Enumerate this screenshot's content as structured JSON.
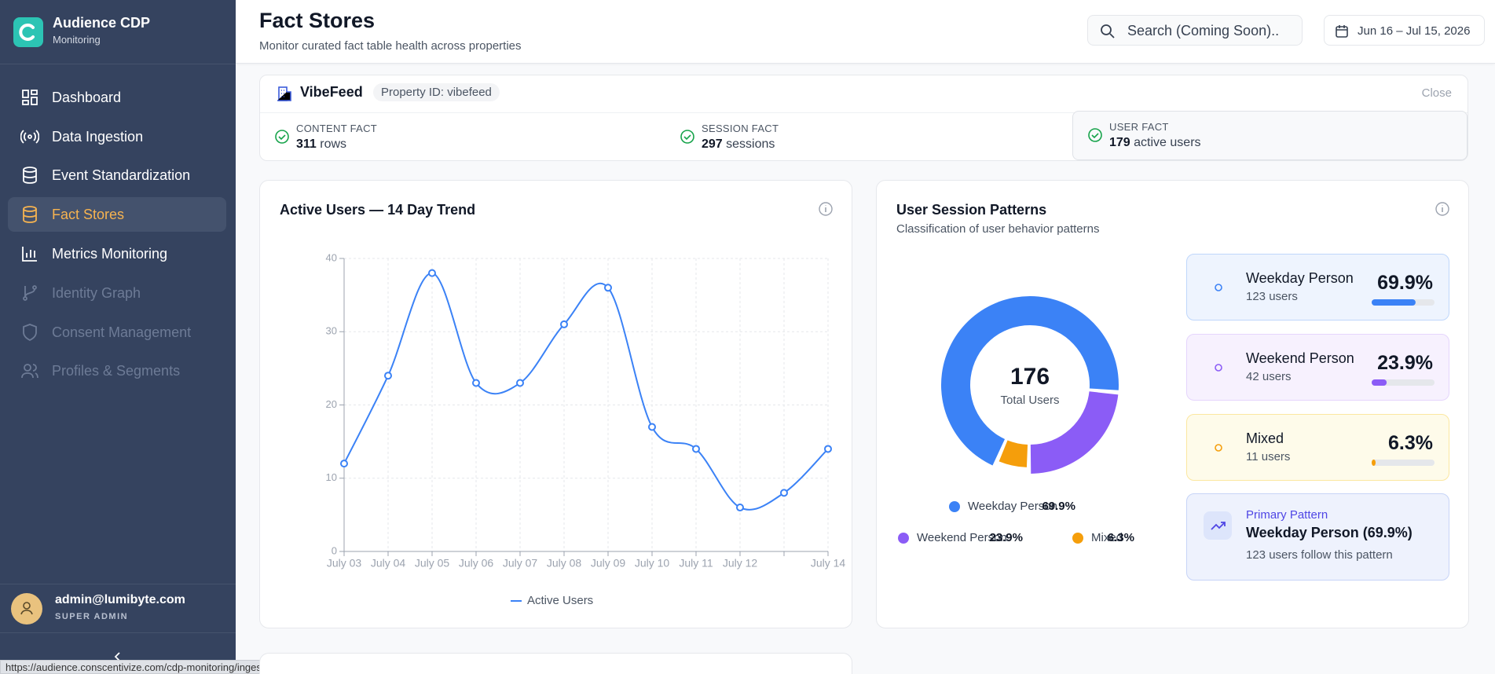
{
  "sidebar": {
    "brand": "Audience CDP",
    "brand_sub": "Monitoring",
    "nav": [
      "Dashboard",
      "Data Ingestion",
      "Event Standardization",
      "Fact Stores",
      "Metrics Monitoring",
      "Identity Graph",
      "Consent Management",
      "Profiles & Segments"
    ],
    "user": {
      "email": "admin@lumibyte.com",
      "role": "SUPER ADMIN"
    },
    "status_url": "https://audience.conscentivize.com/cdp-monitoring/ingestion"
  },
  "header": {
    "title": "Fact Stores",
    "subtitle": "Monitor curated fact table health across properties",
    "search": "Search (Coming Soon)..",
    "date_range": "Jun 16 – Jul 15, 2026"
  },
  "property": {
    "name": "VibeFeed",
    "id": "Property ID: vibefeed",
    "close": "Close",
    "facts": [
      {
        "label": "CONTENT FACT",
        "count": 311,
        "unit": "rows"
      },
      {
        "label": "SESSION FACT",
        "count": 297,
        "unit": "sessions"
      },
      {
        "label": "USER FACT",
        "count": 179,
        "unit": "active users"
      }
    ]
  },
  "chart_data": [
    {
      "type": "line",
      "title": "Active Users — 14 Day Trend",
      "categories": [
        "July 03",
        "July 04",
        "July 05",
        "July 06",
        "July 07",
        "July 08",
        "July 09",
        "July 10",
        "July 11",
        "July 12",
        null,
        "July 14"
      ],
      "series": [
        {
          "name": "Active Users",
          "color": "#3b82f6",
          "values": [
            12,
            24,
            38,
            23,
            23,
            31,
            36,
            17,
            14,
            6,
            8,
            14
          ]
        }
      ],
      "ylim": [
        0,
        40
      ],
      "yticks": [
        0,
        10,
        20,
        30,
        40
      ],
      "grid": true
    },
    {
      "type": "pie",
      "title": "User Session Patterns",
      "subtitle": "Classification of user behavior patterns",
      "center_value": 176,
      "center_label": "Total Users",
      "categories": [
        "Weekday Person",
        "Weekend Person",
        "Mixed"
      ],
      "values": [
        69.9,
        23.9,
        6.3
      ],
      "value_labels": [
        "69.9%",
        "23.9%",
        "6.3%"
      ],
      "colors": [
        "#3b82f6",
        "#8b5cf6",
        "#f59e0b"
      ],
      "count_labels": [
        "123 users",
        "42 users",
        "11 users"
      ],
      "primary": {
        "label": "Primary Pattern",
        "title": "Weekday Person (69.9%)",
        "note": "123 users follow this pattern"
      }
    }
  ]
}
